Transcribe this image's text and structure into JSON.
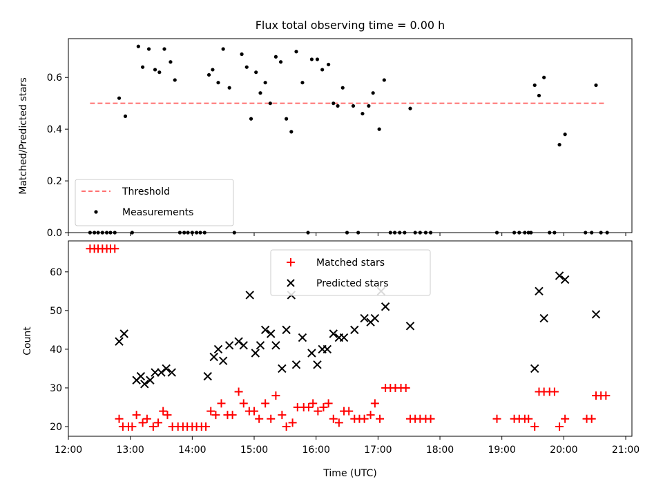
{
  "chart_data": [
    {
      "type": "scatter",
      "title": "Flux total observing time = 0.00 h",
      "xlabel": "",
      "ylabel": "Matched/Predicted stars",
      "xlim": [
        12.0,
        21.1
      ],
      "ylim": [
        0.0,
        0.75
      ],
      "yticks": [
        0.0,
        0.2,
        0.4,
        0.6
      ],
      "ytick_labels": [
        "0.0",
        "0.2",
        "0.4",
        "0.6"
      ],
      "legend_position": "lower-left",
      "threshold": {
        "name": "Threshold",
        "value": 0.5,
        "x_range": [
          12.35,
          20.65
        ],
        "color": "#ff7070",
        "style": "dashed"
      },
      "series": [
        {
          "name": "Measurements",
          "marker": "dot",
          "color": "#000000",
          "points": [
            [
              12.35,
              0
            ],
            [
              12.42,
              0
            ],
            [
              12.48,
              0
            ],
            [
              12.55,
              0
            ],
            [
              12.62,
              0
            ],
            [
              12.68,
              0
            ],
            [
              12.75,
              0
            ],
            [
              12.82,
              0.52
            ],
            [
              12.92,
              0.45
            ],
            [
              13.03,
              0.0
            ],
            [
              13.13,
              0.72
            ],
            [
              13.2,
              0.64
            ],
            [
              13.3,
              0.71
            ],
            [
              13.4,
              0.63
            ],
            [
              13.47,
              0.62
            ],
            [
              13.55,
              0.71
            ],
            [
              13.65,
              0.66
            ],
            [
              13.72,
              0.59
            ],
            [
              13.8,
              0
            ],
            [
              13.87,
              0
            ],
            [
              13.93,
              0
            ],
            [
              14.0,
              0
            ],
            [
              14.07,
              0
            ],
            [
              14.13,
              0
            ],
            [
              14.2,
              0
            ],
            [
              14.27,
              0.61
            ],
            [
              14.33,
              0.63
            ],
            [
              14.42,
              0.58
            ],
            [
              14.5,
              0.71
            ],
            [
              14.6,
              0.56
            ],
            [
              14.68,
              0.0
            ],
            [
              14.8,
              0.69
            ],
            [
              14.88,
              0.64
            ],
            [
              14.95,
              0.44
            ],
            [
              15.03,
              0.62
            ],
            [
              15.1,
              0.54
            ],
            [
              15.18,
              0.58
            ],
            [
              15.26,
              0.5
            ],
            [
              15.35,
              0.68
            ],
            [
              15.43,
              0.66
            ],
            [
              15.52,
              0.44
            ],
            [
              15.6,
              0.39
            ],
            [
              15.68,
              0.7
            ],
            [
              15.78,
              0.58
            ],
            [
              15.87,
              0.0
            ],
            [
              15.93,
              0.67
            ],
            [
              16.02,
              0.67
            ],
            [
              16.1,
              0.63
            ],
            [
              16.2,
              0.65
            ],
            [
              16.28,
              0.5
            ],
            [
              16.35,
              0.49
            ],
            [
              16.43,
              0.56
            ],
            [
              16.5,
              0.0
            ],
            [
              16.6,
              0.49
            ],
            [
              16.68,
              0.0
            ],
            [
              16.75,
              0.46
            ],
            [
              16.85,
              0.49
            ],
            [
              16.92,
              0.54
            ],
            [
              17.02,
              0.4
            ],
            [
              17.1,
              0.59
            ],
            [
              17.2,
              0
            ],
            [
              17.27,
              0
            ],
            [
              17.35,
              0
            ],
            [
              17.43,
              0
            ],
            [
              17.52,
              0.48
            ],
            [
              17.6,
              0
            ],
            [
              17.68,
              0
            ],
            [
              17.77,
              0
            ],
            [
              17.85,
              0
            ],
            [
              18.92,
              0
            ],
            [
              19.2,
              0
            ],
            [
              19.28,
              0
            ],
            [
              19.37,
              0
            ],
            [
              19.43,
              0
            ],
            [
              19.47,
              0
            ],
            [
              19.53,
              0.57
            ],
            [
              19.6,
              0.53
            ],
            [
              19.68,
              0.6
            ],
            [
              19.77,
              0
            ],
            [
              19.85,
              0
            ],
            [
              19.93,
              0.34
            ],
            [
              20.02,
              0.38
            ],
            [
              20.35,
              0
            ],
            [
              20.45,
              0
            ],
            [
              20.52,
              0.57
            ],
            [
              20.6,
              0
            ],
            [
              20.7,
              0
            ]
          ]
        }
      ]
    },
    {
      "type": "scatter",
      "title": "",
      "xlabel": "Time (UTC)",
      "ylabel": "Count",
      "xlim": [
        12.0,
        21.1
      ],
      "ylim": [
        17.5,
        68.0
      ],
      "yticks": [
        20,
        30,
        40,
        50,
        60
      ],
      "ytick_labels": [
        "20",
        "30",
        "40",
        "50",
        "60"
      ],
      "xticks": [
        12,
        13,
        14,
        15,
        16,
        17,
        18,
        19,
        20,
        21
      ],
      "xtick_labels": [
        "12:00",
        "13:00",
        "14:00",
        "15:00",
        "16:00",
        "17:00",
        "18:00",
        "19:00",
        "20:00",
        "21:00"
      ],
      "legend_position": "top-center",
      "series": [
        {
          "name": "Matched stars",
          "marker": "plus",
          "color": "#ff0000",
          "points": [
            [
              12.35,
              66
            ],
            [
              12.42,
              66
            ],
            [
              12.48,
              66
            ],
            [
              12.55,
              66
            ],
            [
              12.62,
              66
            ],
            [
              12.68,
              66
            ],
            [
              12.75,
              66
            ],
            [
              12.82,
              22
            ],
            [
              12.88,
              20
            ],
            [
              12.97,
              20
            ],
            [
              13.03,
              20
            ],
            [
              13.1,
              23
            ],
            [
              13.2,
              21
            ],
            [
              13.27,
              22
            ],
            [
              13.37,
              20
            ],
            [
              13.45,
              21
            ],
            [
              13.53,
              24
            ],
            [
              13.6,
              23
            ],
            [
              13.68,
              20
            ],
            [
              13.77,
              20
            ],
            [
              13.85,
              20
            ],
            [
              13.92,
              20
            ],
            [
              14.0,
              20
            ],
            [
              14.07,
              20
            ],
            [
              14.15,
              20
            ],
            [
              14.22,
              20
            ],
            [
              14.3,
              24
            ],
            [
              14.38,
              23
            ],
            [
              14.47,
              26
            ],
            [
              14.57,
              23
            ],
            [
              14.65,
              23
            ],
            [
              14.75,
              29
            ],
            [
              14.83,
              26
            ],
            [
              14.92,
              24
            ],
            [
              15.0,
              24
            ],
            [
              15.08,
              22
            ],
            [
              15.18,
              26
            ],
            [
              15.27,
              22
            ],
            [
              15.35,
              28
            ],
            [
              15.45,
              23
            ],
            [
              15.52,
              20
            ],
            [
              15.62,
              21
            ],
            [
              15.7,
              25
            ],
            [
              15.8,
              25
            ],
            [
              15.88,
              25
            ],
            [
              15.95,
              26
            ],
            [
              16.03,
              24
            ],
            [
              16.12,
              25
            ],
            [
              16.2,
              26
            ],
            [
              16.28,
              22
            ],
            [
              16.37,
              21
            ],
            [
              16.45,
              24
            ],
            [
              16.53,
              24
            ],
            [
              16.62,
              22
            ],
            [
              16.7,
              22
            ],
            [
              16.78,
              22
            ],
            [
              16.88,
              23
            ],
            [
              16.95,
              26
            ],
            [
              17.03,
              22
            ],
            [
              17.12,
              30
            ],
            [
              17.2,
              30
            ],
            [
              17.28,
              30
            ],
            [
              17.37,
              30
            ],
            [
              17.45,
              30
            ],
            [
              17.52,
              22
            ],
            [
              17.6,
              22
            ],
            [
              17.68,
              22
            ],
            [
              17.77,
              22
            ],
            [
              17.85,
              22
            ],
            [
              18.92,
              22
            ],
            [
              19.2,
              22
            ],
            [
              19.28,
              22
            ],
            [
              19.37,
              22
            ],
            [
              19.43,
              22
            ],
            [
              19.53,
              20
            ],
            [
              19.6,
              29
            ],
            [
              19.68,
              29
            ],
            [
              19.77,
              29
            ],
            [
              19.85,
              29
            ],
            [
              19.93,
              20
            ],
            [
              20.02,
              22
            ],
            [
              20.37,
              22
            ],
            [
              20.45,
              22
            ],
            [
              20.52,
              28
            ],
            [
              20.6,
              28
            ],
            [
              20.68,
              28
            ]
          ]
        },
        {
          "name": "Predicted stars",
          "marker": "x",
          "color": "#000000",
          "points": [
            [
              12.82,
              42
            ],
            [
              12.9,
              44
            ],
            [
              13.1,
              32
            ],
            [
              13.17,
              33
            ],
            [
              13.23,
              31
            ],
            [
              13.32,
              32
            ],
            [
              13.4,
              34
            ],
            [
              13.5,
              34
            ],
            [
              13.58,
              35
            ],
            [
              13.67,
              34
            ],
            [
              14.25,
              33
            ],
            [
              14.35,
              38
            ],
            [
              14.42,
              40
            ],
            [
              14.5,
              37
            ],
            [
              14.6,
              41
            ],
            [
              14.75,
              42
            ],
            [
              14.83,
              41
            ],
            [
              14.93,
              54
            ],
            [
              15.02,
              39
            ],
            [
              15.1,
              41
            ],
            [
              15.18,
              45
            ],
            [
              15.27,
              44
            ],
            [
              15.35,
              41
            ],
            [
              15.45,
              35
            ],
            [
              15.52,
              45
            ],
            [
              15.6,
              54
            ],
            [
              15.68,
              36
            ],
            [
              15.78,
              43
            ],
            [
              15.93,
              39
            ],
            [
              16.02,
              36
            ],
            [
              16.1,
              40
            ],
            [
              16.18,
              40
            ],
            [
              16.28,
              44
            ],
            [
              16.37,
              43
            ],
            [
              16.45,
              43
            ],
            [
              16.62,
              45
            ],
            [
              16.78,
              48
            ],
            [
              16.88,
              47
            ],
            [
              16.95,
              48
            ],
            [
              17.05,
              55
            ],
            [
              17.12,
              51
            ],
            [
              17.52,
              46
            ],
            [
              19.53,
              35
            ],
            [
              19.6,
              55
            ],
            [
              19.68,
              48
            ],
            [
              19.93,
              59
            ],
            [
              20.02,
              58
            ],
            [
              20.52,
              49
            ]
          ]
        }
      ]
    }
  ]
}
